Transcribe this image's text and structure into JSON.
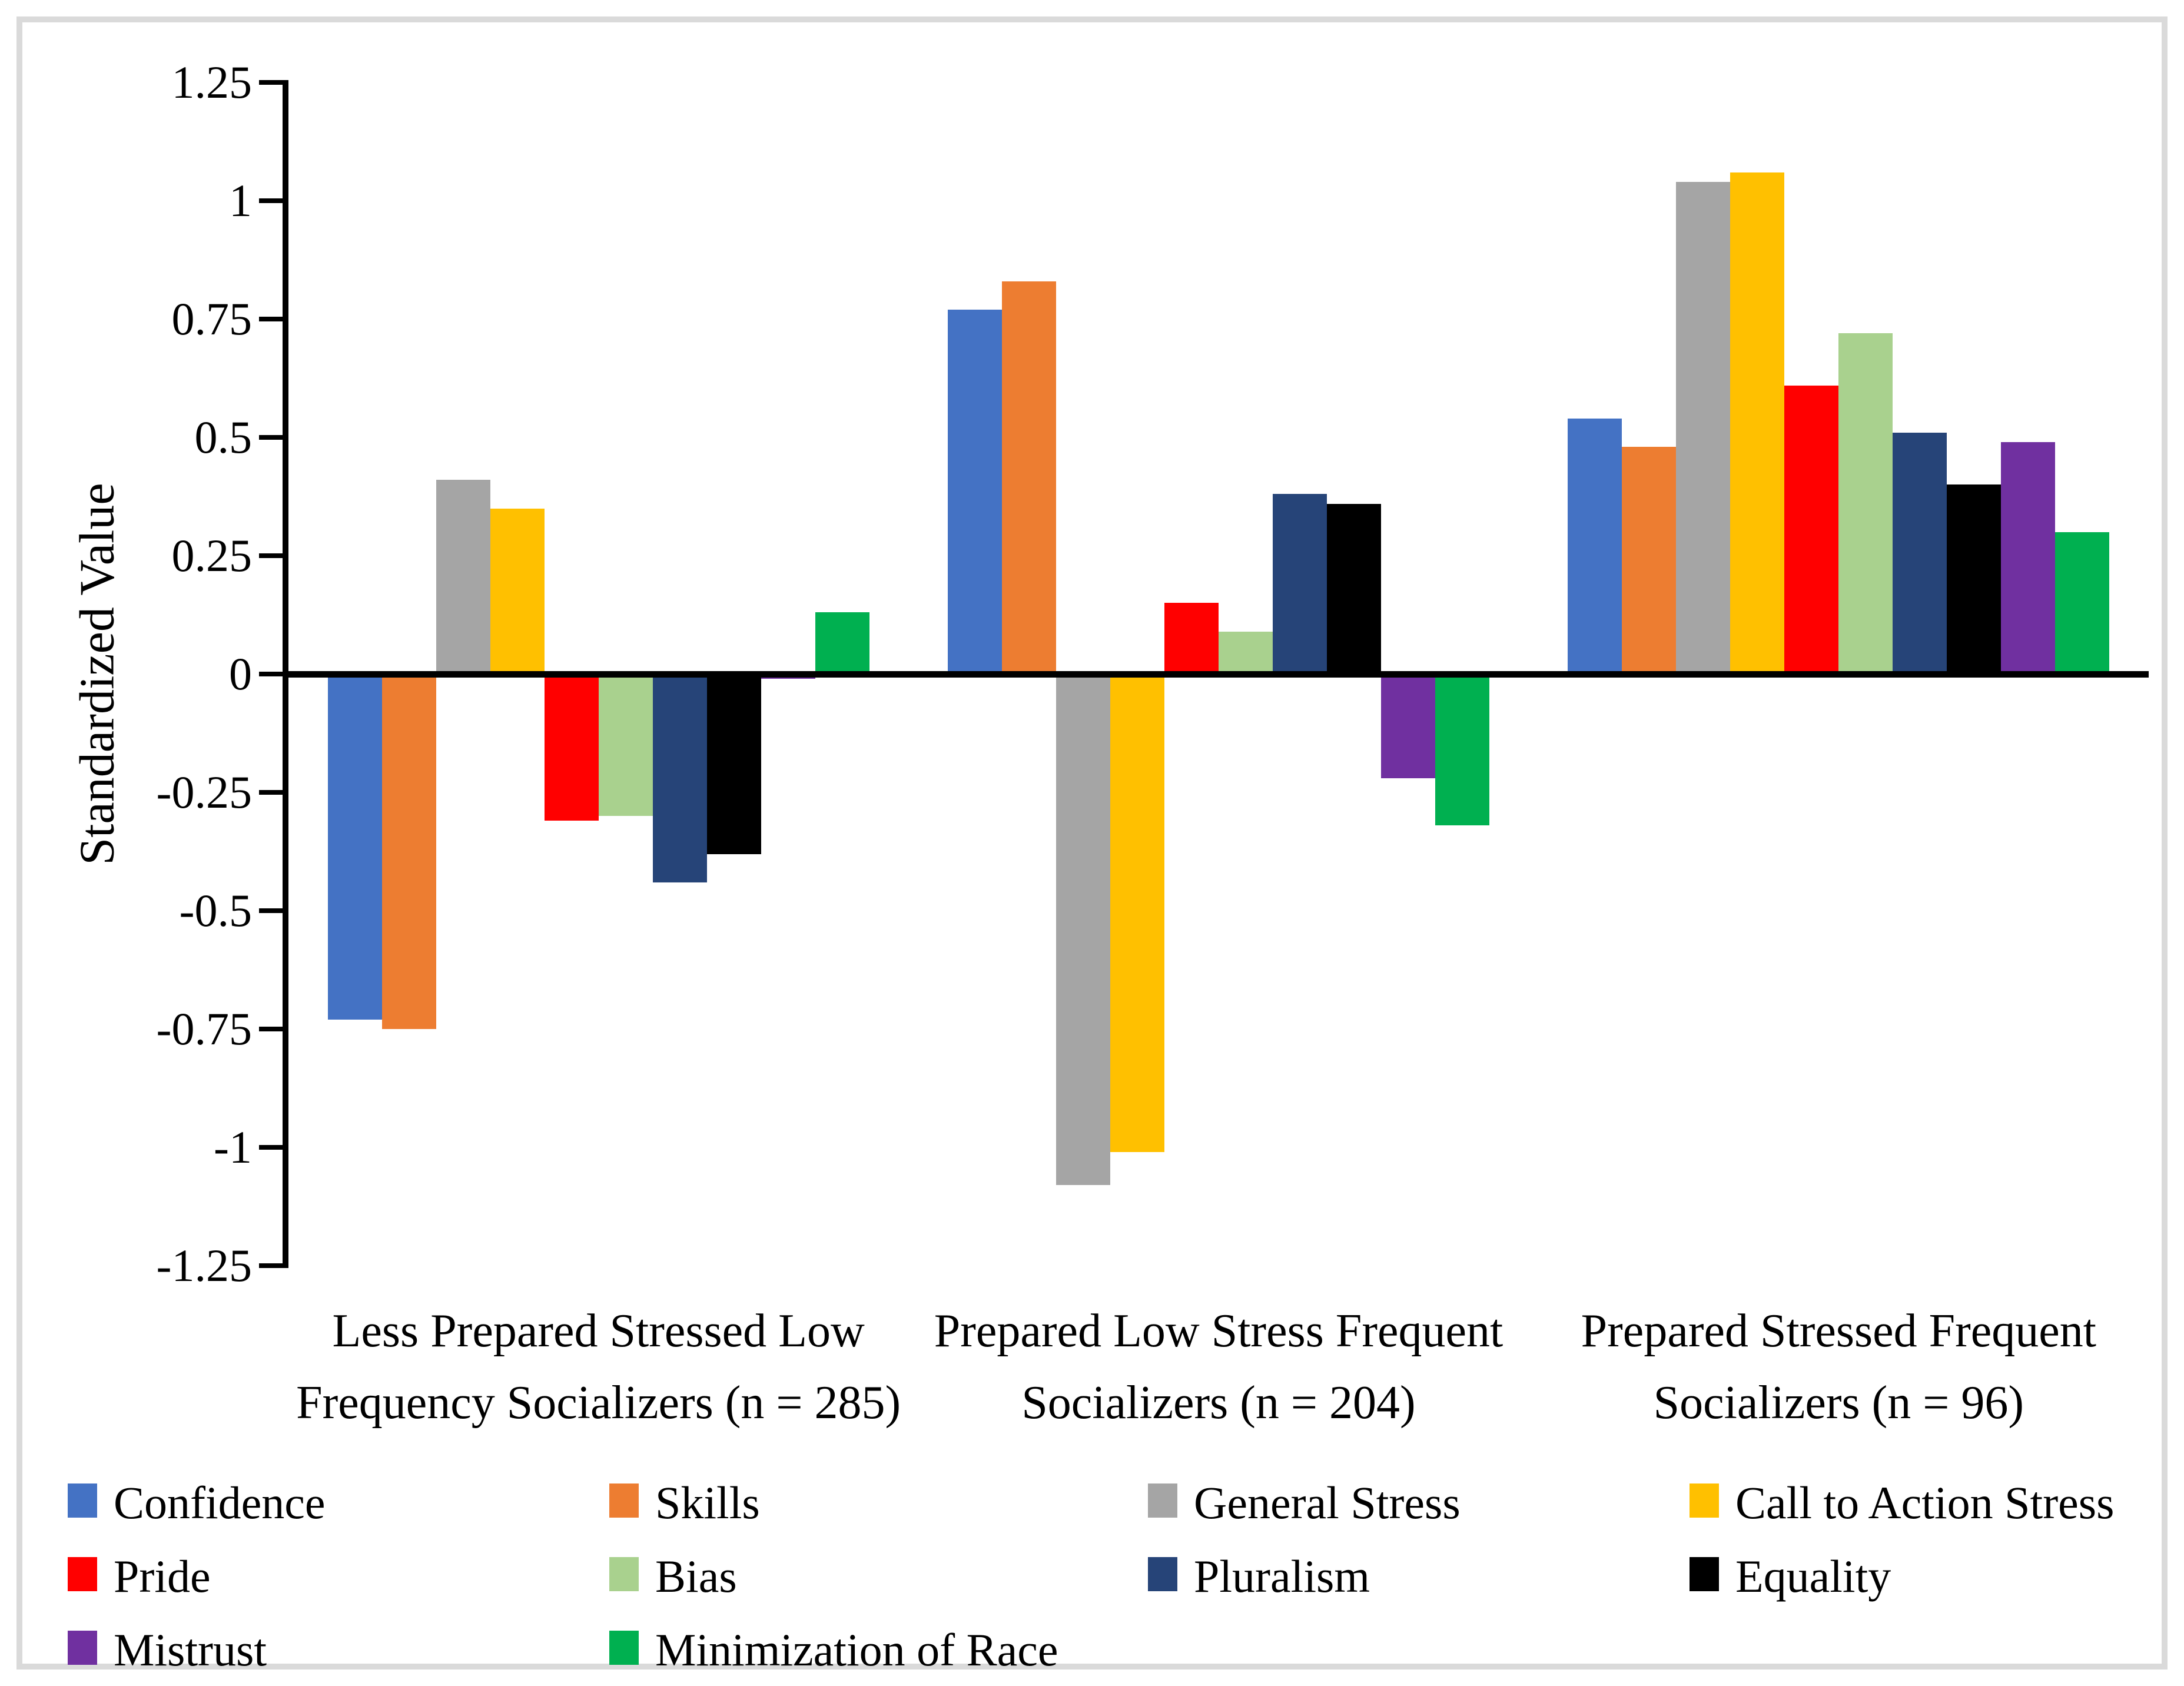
{
  "frame": {
    "border_color": "#DADADA",
    "background": "#FFFFFF"
  },
  "chart_data": {
    "type": "bar",
    "title": "",
    "xlabel": "",
    "ylabel": "Standardized Value",
    "ylim": [
      -1.25,
      1.25
    ],
    "ytick_interval": 0.25,
    "ytick_labels": [
      "1.25",
      "1",
      "0.75",
      "0.5",
      "0.25",
      "0",
      "-0.25",
      "-0.5",
      "-0.75",
      "-1",
      "-1.25"
    ],
    "ytick_values": [
      1.25,
      1,
      0.75,
      0.5,
      0.25,
      0,
      -0.25,
      -0.5,
      -0.75,
      -1,
      -1.25
    ],
    "grid": false,
    "legend_position": "bottom",
    "legend_columns": 4,
    "categories": [
      "Less Prepared Stressed Low Frequency Socializers (n = 285)",
      "Prepared Low Stress Frequent Socializers (n = 204)",
      "Prepared Stressed Frequent Socializers (n = 96)"
    ],
    "series": [
      {
        "name": "Confidence",
        "color": "#4472C4",
        "values": [
          -0.73,
          0.77,
          0.54
        ]
      },
      {
        "name": "Skills",
        "color": "#ED7D31",
        "values": [
          -0.75,
          0.83,
          0.48
        ]
      },
      {
        "name": "General Stress",
        "color": "#A5A5A5",
        "values": [
          0.41,
          -1.08,
          1.04
        ]
      },
      {
        "name": "Call to Action Stress",
        "color": "#FFC000",
        "values": [
          0.35,
          -1.01,
          1.06
        ]
      },
      {
        "name": "Pride",
        "color": "#FF0000",
        "values": [
          -0.31,
          0.15,
          0.61
        ]
      },
      {
        "name": "Bias",
        "color": "#A9D18E",
        "values": [
          -0.3,
          0.09,
          0.72
        ]
      },
      {
        "name": "Pluralism",
        "color": "#264478",
        "values": [
          -0.44,
          0.38,
          0.51
        ]
      },
      {
        "name": "Equality",
        "color": "#000000",
        "values": [
          -0.38,
          0.36,
          0.4
        ]
      },
      {
        "name": "Mistrust",
        "color": "#7030A0",
        "values": [
          -0.01,
          -0.22,
          0.49
        ]
      },
      {
        "name": "Minimization of Race",
        "color": "#00B050",
        "values": [
          0.13,
          -0.32,
          0.3
        ]
      }
    ]
  }
}
